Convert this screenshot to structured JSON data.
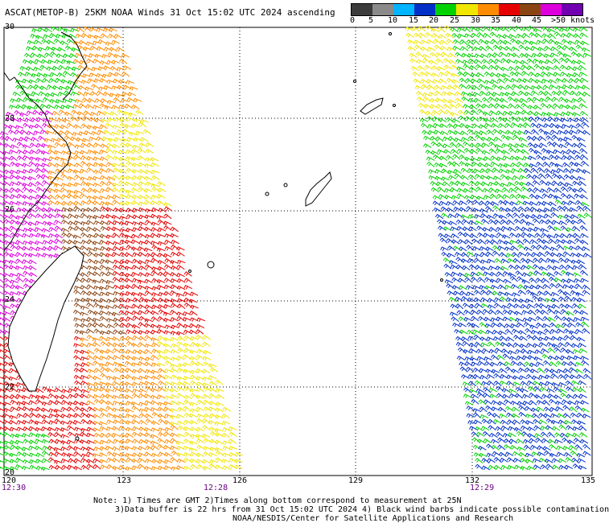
{
  "title": "ASCAT(METOP-B) 25KM NOAA Winds 31 Oct 15:02 UTC 2024 ascending",
  "legend": {
    "labels": [
      "0",
      "5",
      "10",
      "15",
      "20",
      "25",
      "30",
      "35",
      "40",
      "45",
      ">50 knots"
    ],
    "colors": [
      "#3c3c3c",
      "#8a8a8a",
      "#00b4ff",
      "#0030c8",
      "#00d200",
      "#f0e600",
      "#ff8c00",
      "#e60000",
      "#8b4513",
      "#dd00dd",
      "#7000b0"
    ]
  },
  "axes": {
    "lat_labels": [
      "30",
      "28",
      "26",
      "24",
      "22",
      "20"
    ],
    "lon_labels": [
      "120",
      "123",
      "126",
      "129",
      "132",
      "135"
    ]
  },
  "pass_times": [
    "12:30",
    "12:28",
    "12:29"
  ],
  "notes": [
    "Note: 1) Times are GMT 2)Times along bottom correspond to measurement at 25N",
    "3)Data buffer is 22 hrs from 31 Oct 15:02 UTC 2024 4) Black wind barbs indicate possible contamination",
    "NOAA/NESDIS/Center for Satellite Applications and Research"
  ]
}
